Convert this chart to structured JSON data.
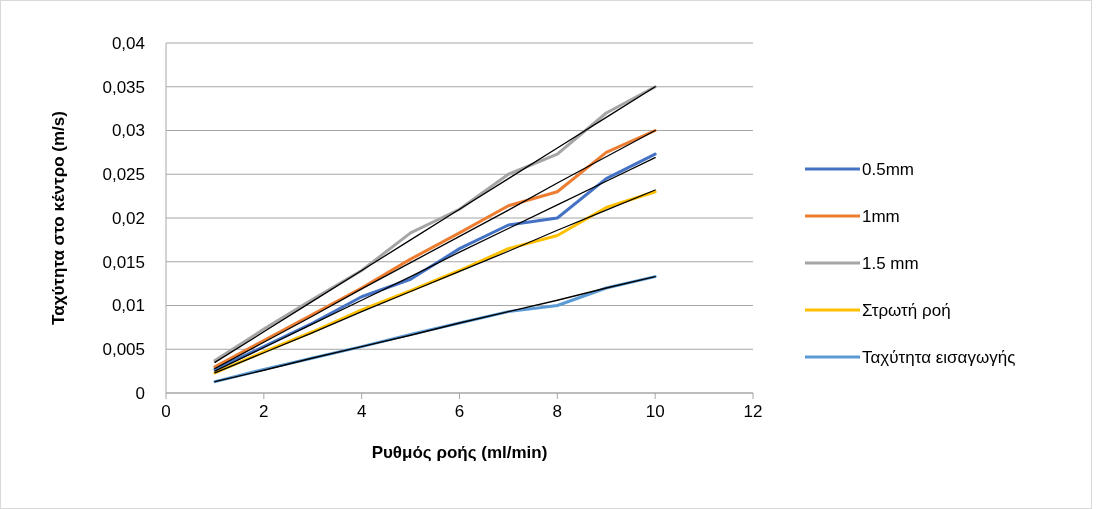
{
  "chart_data": {
    "type": "line",
    "xlabel": "Ρυθμός ροής (ml/min)",
    "ylabel": "Ταχύτητα στο κέντρο (m/s)",
    "x": [
      1,
      2,
      3,
      4,
      5,
      6,
      7,
      8,
      9,
      10
    ],
    "xlim": [
      0,
      12
    ],
    "xticks": [
      0,
      2,
      4,
      6,
      8,
      10,
      12
    ],
    "ylim": [
      0,
      0.04
    ],
    "yticks": [
      {
        "value": 0,
        "label": "0"
      },
      {
        "value": 0.005,
        "label": "0,005"
      },
      {
        "value": 0.01,
        "label": "0,01"
      },
      {
        "value": 0.015,
        "label": "0,015"
      },
      {
        "value": 0.02,
        "label": "0,02"
      },
      {
        "value": 0.025,
        "label": "0,025"
      },
      {
        "value": 0.03,
        "label": "0,03"
      },
      {
        "value": 0.035,
        "label": "0,035"
      },
      {
        "value": 0.04,
        "label": "0,04"
      }
    ],
    "grid": "y",
    "legend": "right",
    "marker": "none",
    "line_style": "solid",
    "series": [
      {
        "name": "0.5mm",
        "color": "#4472c4",
        "values": [
          0.0027,
          0.0053,
          0.008,
          0.011,
          0.013,
          0.0165,
          0.0192,
          0.02,
          0.0245,
          0.0273
        ]
      },
      {
        "name": "1mm",
        "color": "#ed7d31",
        "values": [
          0.003,
          0.006,
          0.009,
          0.012,
          0.0153,
          0.0183,
          0.0214,
          0.023,
          0.0275,
          0.03
        ]
      },
      {
        "name": "1.5 mm",
        "color": "#a5a5a5",
        "values": [
          0.0037,
          0.0073,
          0.0107,
          0.014,
          0.0183,
          0.021,
          0.025,
          0.0273,
          0.032,
          0.035
        ]
      },
      {
        "name": "Στρωτή ροή",
        "color": "#ffc000",
        "values": [
          0.0023,
          0.0047,
          0.007,
          0.0095,
          0.0117,
          0.014,
          0.0165,
          0.018,
          0.0212,
          0.023
        ]
      },
      {
        "name": "Ταχύτητα εισαγωγής",
        "color": "#5b9bd5",
        "values": [
          0.0013,
          0.0027,
          0.004,
          0.0053,
          0.0067,
          0.008,
          0.0093,
          0.01,
          0.012,
          0.0133
        ]
      },
      {
        "type": "line",
        "color": "#000000",
        "values": [
          0.0025,
          0.0052,
          0.0079,
          0.0106,
          0.0133,
          0.0161,
          0.0188,
          0.0215,
          0.0242,
          0.0269
        ]
      },
      {
        "type": "line",
        "color": "#000000",
        "values": [
          0.0028,
          0.0058,
          0.0088,
          0.0119,
          0.0149,
          0.0179,
          0.0209,
          0.024,
          0.027,
          0.03
        ]
      },
      {
        "type": "line",
        "color": "#000000",
        "values": [
          0.0035,
          0.007,
          0.0105,
          0.014,
          0.0175,
          0.021,
          0.0245,
          0.028,
          0.0315,
          0.035
        ]
      },
      {
        "type": "line",
        "color": "#000000",
        "values": [
          0.0023,
          0.0046,
          0.0069,
          0.0093,
          0.0116,
          0.0139,
          0.0162,
          0.0186,
          0.0209,
          0.0232
        ]
      },
      {
        "type": "line",
        "color": "#000000",
        "values": [
          0.0013,
          0.0026,
          0.004,
          0.0053,
          0.0066,
          0.008,
          0.0093,
          0.0106,
          0.012,
          0.0133
        ]
      }
    ]
  }
}
